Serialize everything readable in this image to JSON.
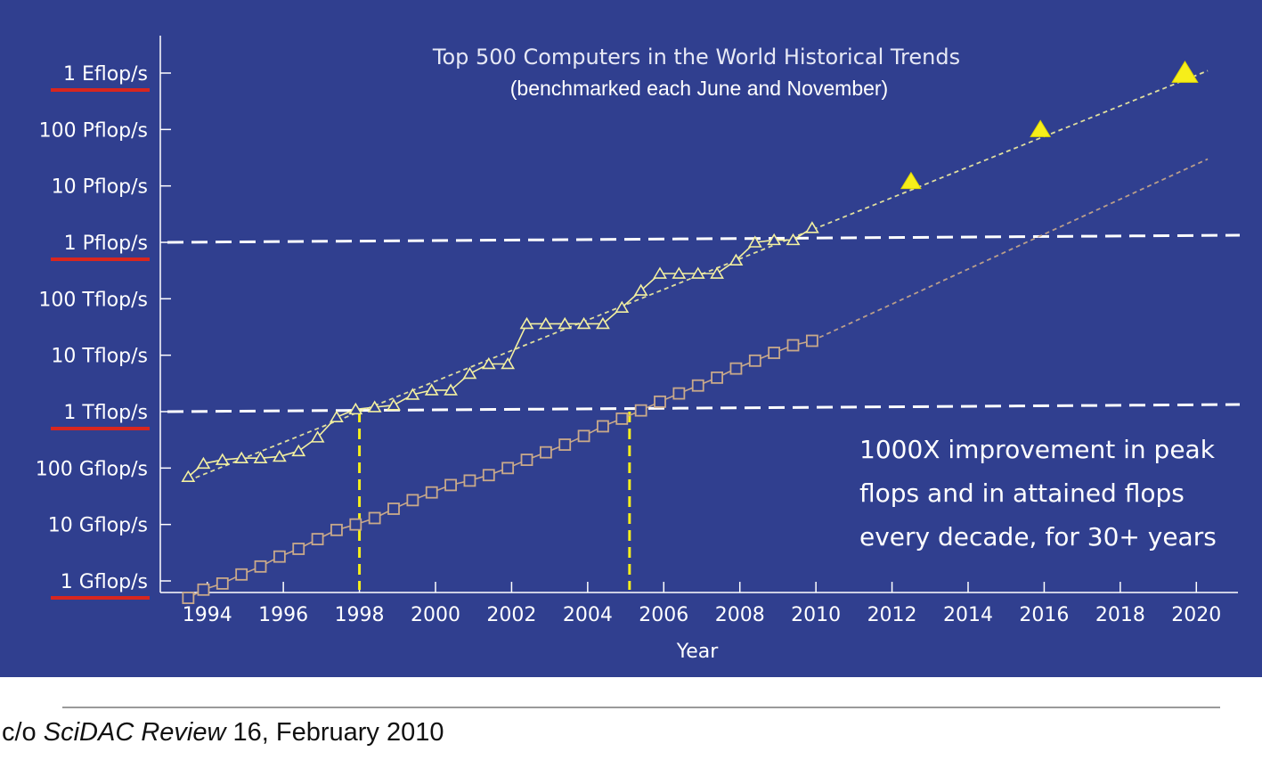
{
  "chart_data": {
    "type": "line",
    "title": "Top 500 Computers in the World Historical Trends",
    "subtitle": "(benchmarked each June and November)",
    "xlabel": "Year",
    "ylabel": "",
    "y_scale": "log",
    "x_ticks": [
      "1994",
      "1996",
      "1998",
      "2000",
      "2002",
      "2004",
      "2006",
      "2008",
      "2010",
      "2012",
      "2014",
      "2016",
      "2018",
      "2020"
    ],
    "y_ticks": [
      {
        "value": 1000000000.0,
        "label": "1 Gflop/s",
        "underlined": true
      },
      {
        "value": 10000000000.0,
        "label": "10 Gflop/s",
        "underlined": false
      },
      {
        "value": 100000000000.0,
        "label": "100 Gflop/s",
        "underlined": false
      },
      {
        "value": 1000000000000.0,
        "label": "1 Tflop/s",
        "underlined": true
      },
      {
        "value": 10000000000000.0,
        "label": "10 Tflop/s",
        "underlined": false
      },
      {
        "value": 100000000000000.0,
        "label": "100 Tflop/s",
        "underlined": false
      },
      {
        "value": 1000000000000000.0,
        "label": "1 Pflop/s",
        "underlined": true
      },
      {
        "value": 1e+16,
        "label": "10 Pflop/s",
        "underlined": false
      },
      {
        "value": 1e+17,
        "label": "100 Pflop/s",
        "underlined": false
      },
      {
        "value": 1e+18,
        "label": "1 Eflop/s",
        "underlined": true
      }
    ],
    "xlim": [
      1993,
      2021
    ],
    "ylim": [
      1000000000.0,
      1e+18
    ],
    "series": [
      {
        "marker": "triangle",
        "color": "#f3f0a0",
        "points": [
          [
            1993.5,
            70000000000.0
          ],
          [
            1993.9,
            120000000000.0
          ],
          [
            1994.4,
            140000000000.0
          ],
          [
            1994.9,
            150000000000.0
          ],
          [
            1995.4,
            150000000000.0
          ],
          [
            1995.9,
            160000000000.0
          ],
          [
            1996.4,
            200000000000.0
          ],
          [
            1996.9,
            350000000000.0
          ],
          [
            1997.4,
            800000000000.0
          ],
          [
            1997.9,
            1100000000000.0
          ],
          [
            1998.4,
            1200000000000.0
          ],
          [
            1998.9,
            1300000000000.0
          ],
          [
            1999.4,
            2000000000000.0
          ],
          [
            1999.9,
            2400000000000.0
          ],
          [
            2000.4,
            2400000000000.0
          ],
          [
            2000.9,
            4700000000000.0
          ],
          [
            2001.4,
            7000000000000.0
          ],
          [
            2001.9,
            7000000000000.0
          ],
          [
            2002.4,
            36000000000000.0
          ],
          [
            2002.9,
            36000000000000.0
          ],
          [
            2003.4,
            36000000000000.0
          ],
          [
            2003.9,
            36000000000000.0
          ],
          [
            2004.4,
            36000000000000.0
          ],
          [
            2004.9,
            70000000000000.0
          ],
          [
            2005.4,
            140000000000000.0
          ],
          [
            2005.9,
            280000000000000.0
          ],
          [
            2006.4,
            280000000000000.0
          ],
          [
            2006.9,
            280000000000000.0
          ],
          [
            2007.4,
            280000000000000.0
          ],
          [
            2007.9,
            480000000000000.0
          ],
          [
            2008.4,
            1000000000000000.0
          ],
          [
            2008.9,
            1100000000000000.0
          ],
          [
            2009.4,
            1100000000000000.0
          ],
          [
            2009.9,
            1800000000000000.0
          ]
        ],
        "trend": [
          [
            1993.5,
            60000000000.0
          ],
          [
            2020.3,
            1.1e+18
          ]
        ],
        "projected": [
          [
            2012.5,
            1.2e+16
          ],
          [
            2015.9,
            1e+17
          ],
          [
            2019.7,
            1e+18
          ]
        ]
      },
      {
        "marker": "square",
        "color": "#c9a98a",
        "points": [
          [
            1993.5,
            500000000.0
          ],
          [
            1993.9,
            700000000.0
          ],
          [
            1994.4,
            900000000.0
          ],
          [
            1994.9,
            1300000000.0
          ],
          [
            1995.4,
            1800000000.0
          ],
          [
            1995.9,
            2700000000.0
          ],
          [
            1996.4,
            3700000000.0
          ],
          [
            1996.9,
            5500000000.0
          ],
          [
            1997.4,
            8000000000.0
          ],
          [
            1997.9,
            10000000000.0
          ],
          [
            1998.4,
            13000000000.0
          ],
          [
            1998.9,
            19000000000.0
          ],
          [
            1999.4,
            27000000000.0
          ],
          [
            1999.9,
            37000000000.0
          ],
          [
            2000.4,
            50000000000.0
          ],
          [
            2000.9,
            60000000000.0
          ],
          [
            2001.4,
            75000000000.0
          ],
          [
            2001.9,
            100000000000.0
          ],
          [
            2002.4,
            140000000000.0
          ],
          [
            2002.9,
            190000000000.0
          ],
          [
            2003.4,
            260000000000.0
          ],
          [
            2003.9,
            370000000000.0
          ],
          [
            2004.4,
            550000000000.0
          ],
          [
            2004.9,
            750000000000.0
          ],
          [
            2005.4,
            1050000000000.0
          ],
          [
            2005.9,
            1500000000000.0
          ],
          [
            2006.4,
            2100000000000.0
          ],
          [
            2006.9,
            2900000000000.0
          ],
          [
            2007.4,
            4000000000000.0
          ],
          [
            2007.9,
            5800000000000.0
          ],
          [
            2008.4,
            8000000000000.0
          ],
          [
            2008.9,
            11000000000000.0
          ],
          [
            2009.4,
            15000000000000.0
          ],
          [
            2009.9,
            18000000000000.0
          ]
        ],
        "trend": [
          [
            2009.9,
            18000000000000.0
          ],
          [
            2020.3,
            3e+16
          ]
        ]
      }
    ],
    "reference_lines": {
      "horizontal": [
        1000000000000.0,
        1000000000000000.0
      ],
      "vertical_crossings": [
        {
          "x": 1998.0,
          "y_top": 1000000000000.0
        },
        {
          "x": 2005.1,
          "y_top": 1000000000000.0
        }
      ]
    },
    "annotation": [
      "1000X improvement in peak",
      "flops and in attained flops",
      "every decade, for 30+ years"
    ],
    "grid": false,
    "legend": "none"
  },
  "citation": {
    "prefix": "c/o ",
    "journal": "SciDAC Review",
    "suffix": " 16, February 2010"
  },
  "colors": {
    "background": "#303f8f",
    "underline": "#d8261f",
    "reference": "#ffffff",
    "crossing": "#f6ee1a"
  }
}
